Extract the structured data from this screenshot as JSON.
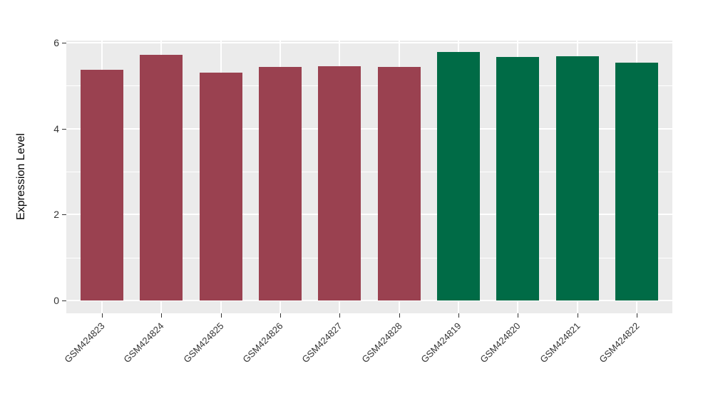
{
  "figure": {
    "background_color": "#ffffff",
    "panel_background_color": "#ebebeb",
    "grid_color": "#ffffff",
    "tick_text_color": "#333333"
  },
  "chart_data": {
    "type": "bar",
    "title": "",
    "xlabel": "",
    "ylabel": "Expression Level",
    "categories": [
      "GSM424823",
      "GSM424824",
      "GSM424825",
      "GSM424826",
      "GSM424827",
      "GSM424828",
      "GSM424819",
      "GSM424820",
      "GSM424821",
      "GSM424822"
    ],
    "values": [
      5.37,
      5.72,
      5.3,
      5.44,
      5.45,
      5.44,
      5.78,
      5.67,
      5.69,
      5.54
    ],
    "bar_colors": [
      "#9a4150",
      "#9a4150",
      "#9a4150",
      "#9a4150",
      "#9a4150",
      "#9a4150",
      "#006b46",
      "#006b46",
      "#006b46",
      "#006b46"
    ],
    "group_colors": {
      "maroon": "#9a4150",
      "green": "#006b46"
    },
    "yticks": [
      0,
      2,
      4,
      6
    ],
    "yticks_minor": [
      1,
      3,
      5
    ],
    "ylim": [
      0,
      6
    ],
    "x_tick_rotation_deg": 45,
    "grid": true,
    "legend": false
  }
}
